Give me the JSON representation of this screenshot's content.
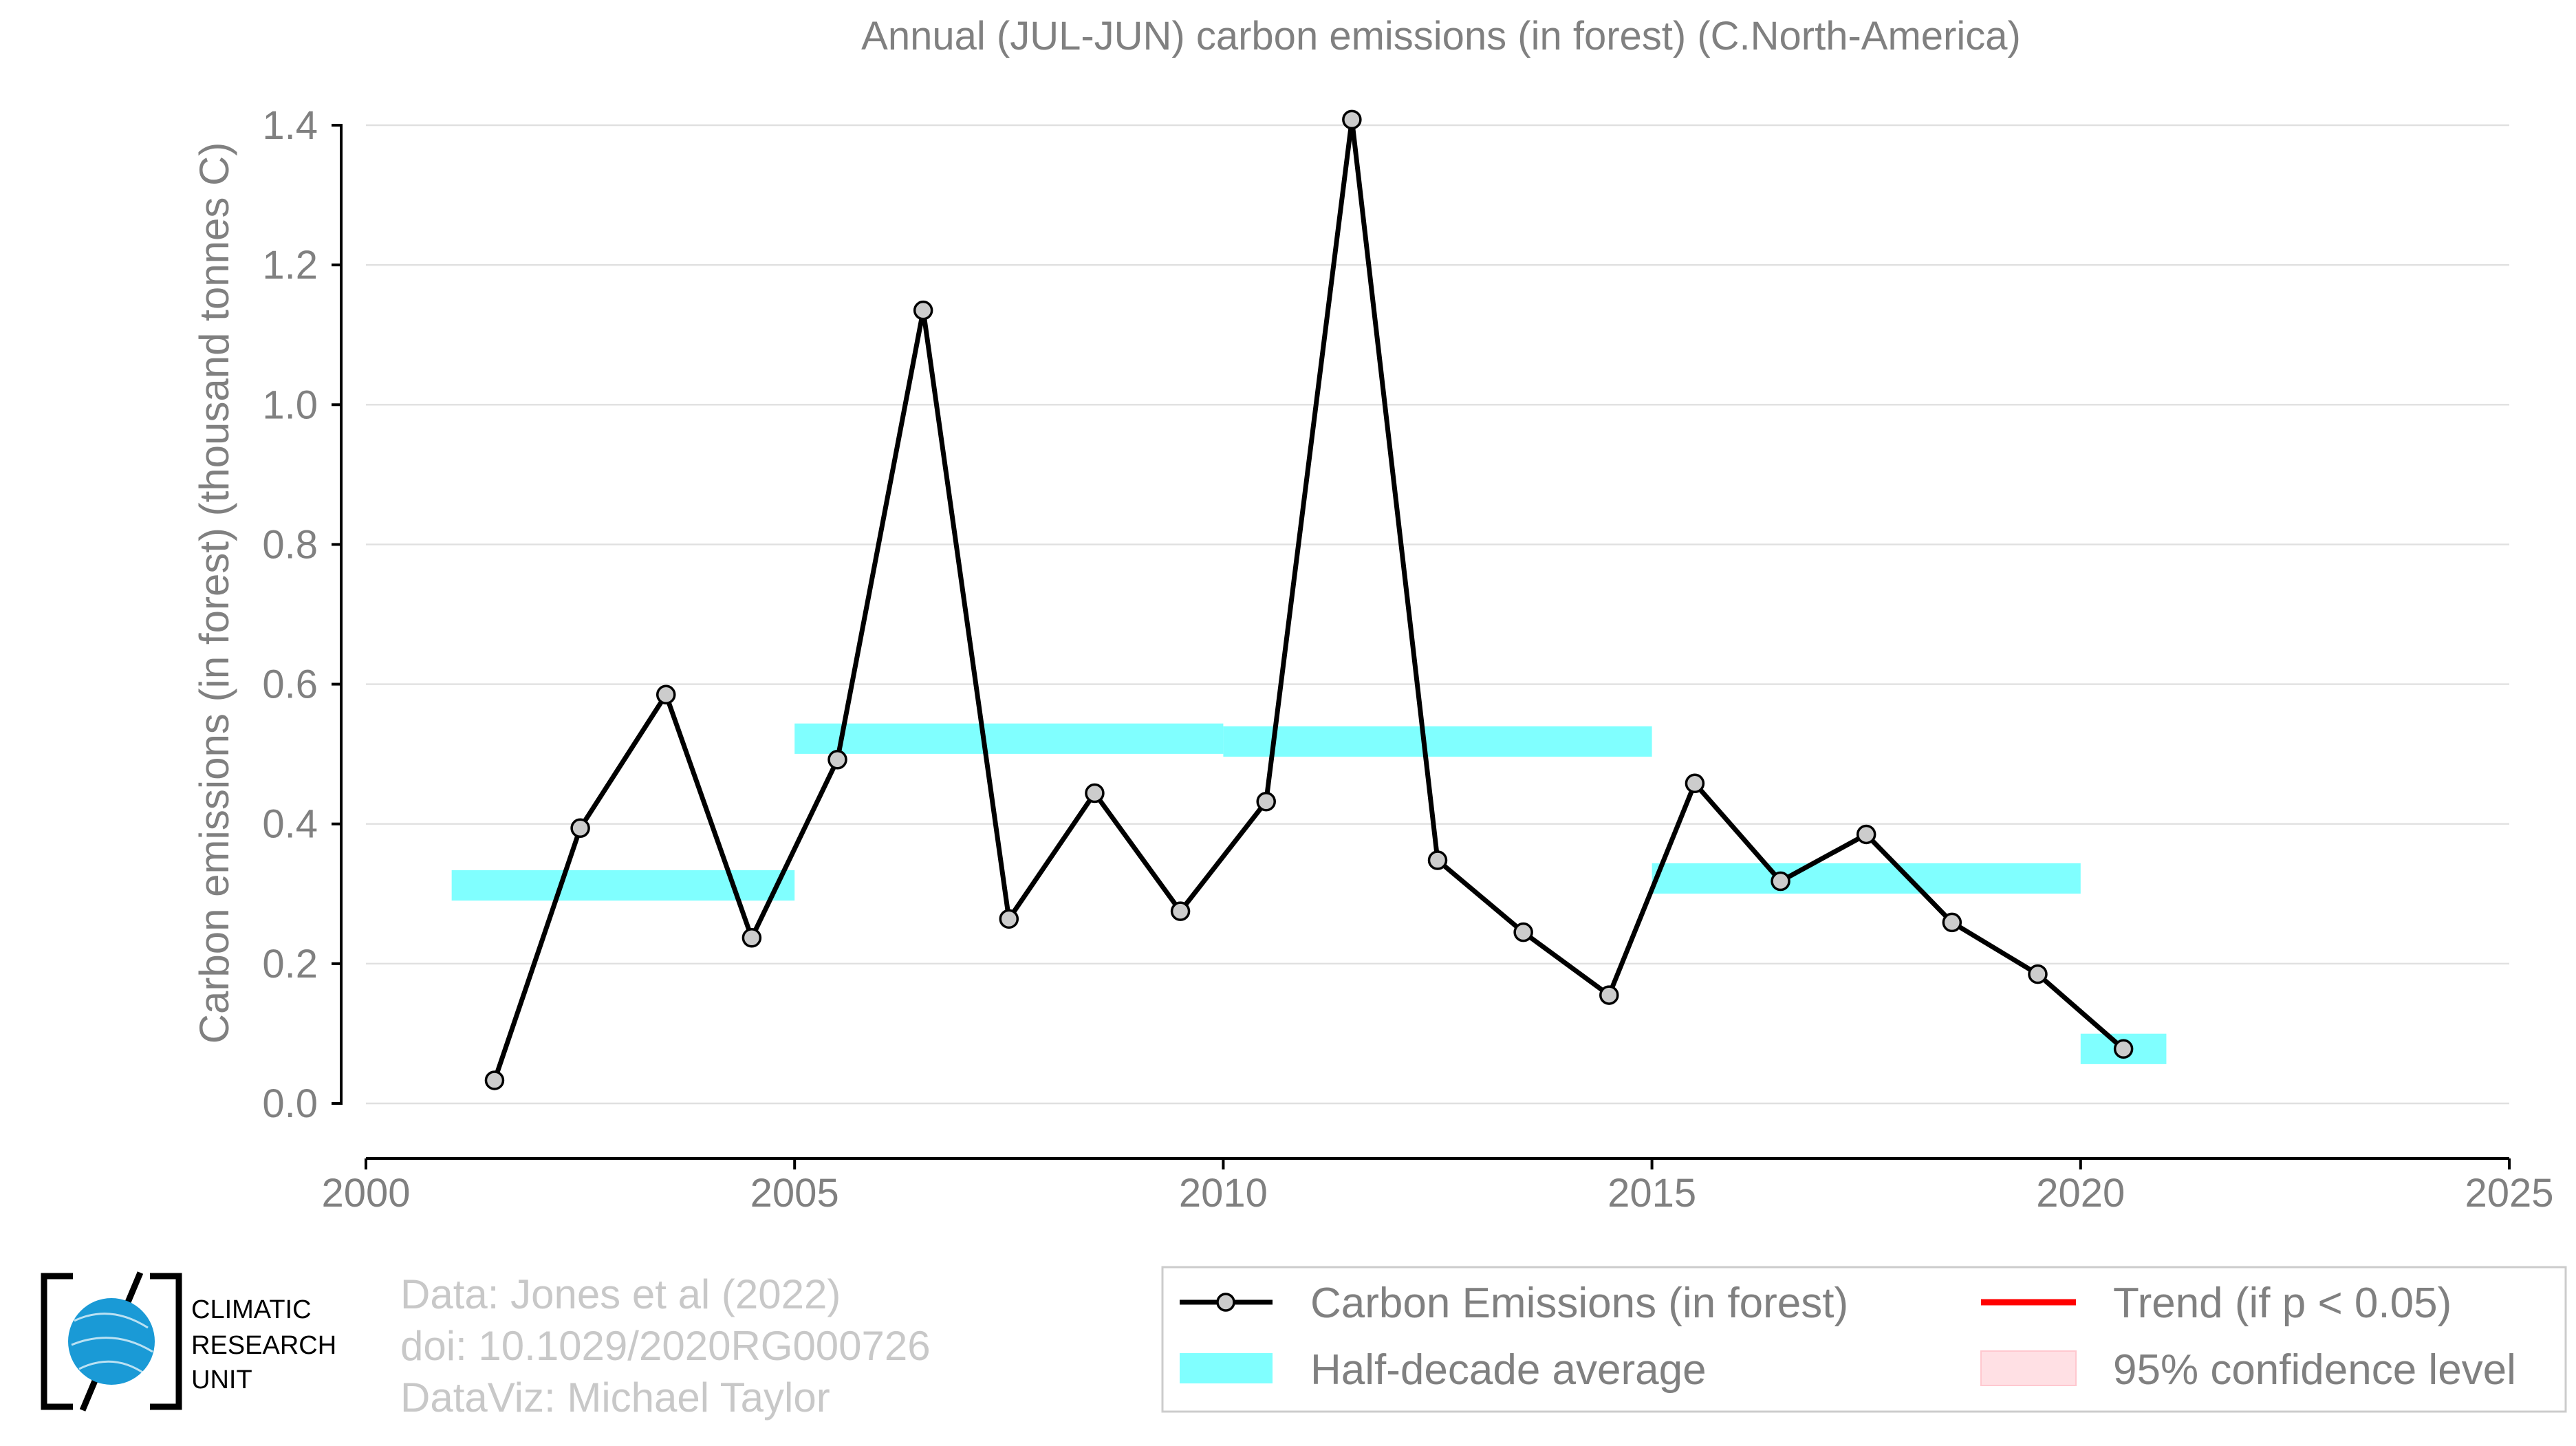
{
  "chart_data": {
    "type": "line",
    "title": "Annual (JUL-JUN) carbon emissions (in forest) (C.North-America)",
    "ylabel": "Carbon emissions (in forest) (thousand tonnes C)",
    "xlabel": "",
    "xlim": [
      2000,
      2025
    ],
    "ylim": [
      0.0,
      1.4
    ],
    "x_ticks": [
      "2000",
      "2005",
      "2010",
      "2015",
      "2020",
      "2025"
    ],
    "y_ticks": [
      "0.0",
      "0.2",
      "0.4",
      "0.6",
      "0.8",
      "1.0",
      "1.2",
      "1.4"
    ],
    "grid": true,
    "series": [
      {
        "name": "Carbon Emissions (in forest)",
        "color": "#000000",
        "x": [
          2001.5,
          2002.5,
          2003.5,
          2004.5,
          2005.5,
          2006.5,
          2007.5,
          2008.5,
          2009.5,
          2010.5,
          2011.5,
          2012.5,
          2013.5,
          2014.5,
          2015.5,
          2016.5,
          2017.5,
          2018.5,
          2019.5,
          2020.5
        ],
        "y": [
          0.033,
          0.394,
          0.585,
          0.237,
          0.492,
          1.135,
          0.264,
          0.444,
          0.275,
          0.432,
          1.408,
          0.348,
          0.245,
          0.155,
          0.458,
          0.318,
          0.385,
          0.259,
          0.185,
          0.078
        ]
      }
    ],
    "half_decade_average": {
      "name": "Half-decade average",
      "color": "#80ffff",
      "segments": [
        {
          "x_start": 2001,
          "x_end": 2005,
          "y": 0.312
        },
        {
          "x_start": 2005,
          "x_end": 2010,
          "y": 0.522
        },
        {
          "x_start": 2010,
          "x_end": 2015,
          "y": 0.518
        },
        {
          "x_start": 2015,
          "x_end": 2020,
          "y": 0.322
        },
        {
          "x_start": 2020,
          "x_end": 2021,
          "y": 0.078
        }
      ]
    },
    "legend": {
      "placement": "bottom-right",
      "entries": [
        {
          "label": "Carbon Emissions (in forest)",
          "color": "#000000",
          "kind": "line-marker"
        },
        {
          "label": "Trend (if p < 0.05)",
          "color": "#ff0000",
          "kind": "line"
        },
        {
          "label": "Half-decade average",
          "color": "#80ffff",
          "kind": "band"
        },
        {
          "label": "95% confidence level",
          "color": "#ffe0e4",
          "kind": "patch"
        }
      ]
    }
  },
  "credits": {
    "line1": "Data: Jones et al (2022)",
    "line2": "doi: 10.1029/2020RG000726",
    "line3": "DataViz: Michael Taylor"
  },
  "logo": {
    "line1": "CLIMATIC",
    "line2": "RESEARCH",
    "line3": "UNIT",
    "globe_color": "#1a9ad6"
  }
}
